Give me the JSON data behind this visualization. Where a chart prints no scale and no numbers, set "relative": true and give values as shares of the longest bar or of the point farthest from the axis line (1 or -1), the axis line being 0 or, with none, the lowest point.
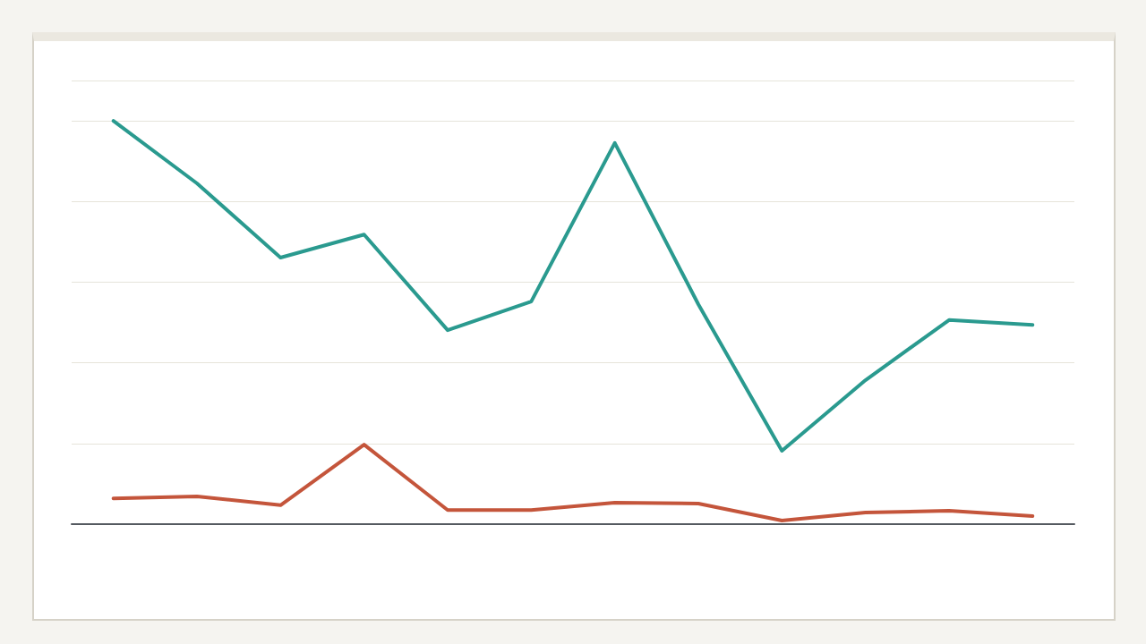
{
  "chart_data": {
    "type": "line",
    "relative": true,
    "categories": [
      null,
      null,
      null,
      null,
      null,
      null,
      null,
      null,
      null,
      null,
      null,
      null
    ],
    "series": [
      {
        "color": "#2a9a8f",
        "values": [
          1,
          0.845,
          0.661,
          0.718,
          0.481,
          0.552,
          0.945,
          0.545,
          0.182,
          0.357,
          0.506,
          0.494
        ]
      },
      {
        "color": "#c4553b",
        "values": [
          0.064,
          0.069,
          0.047,
          0.197,
          0.035,
          0.035,
          0.053,
          0.051,
          0.009,
          0.029,
          0.033,
          0.02
        ]
      }
    ],
    "grid": "y",
    "marker": "none",
    "line_style": "solid"
  }
}
